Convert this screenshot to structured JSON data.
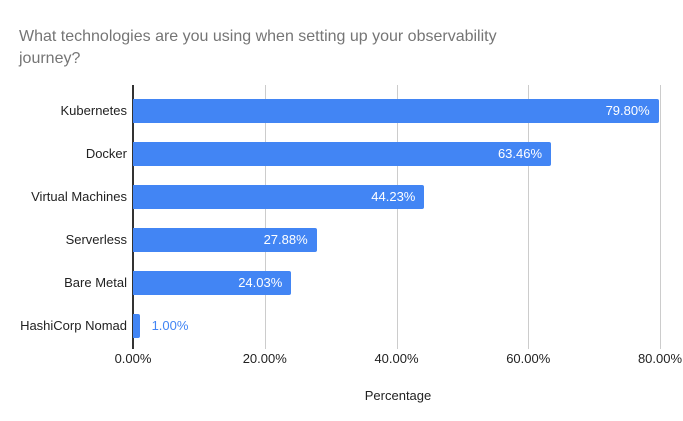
{
  "title_lines": [
    "What technologies are you using when setting up your observability",
    "journey?"
  ],
  "chart_data": {
    "type": "bar",
    "orientation": "horizontal",
    "title": "What technologies are you using when setting up your observability journey?",
    "categories": [
      "Kubernetes",
      "Docker",
      "Virtual Machines",
      "Serverless",
      "Bare Metal",
      "HashiCorp Nomad"
    ],
    "values": [
      79.8,
      63.46,
      44.23,
      27.88,
      24.03,
      1.0
    ],
    "value_labels": [
      "79.80%",
      "63.46%",
      "44.23%",
      "27.88%",
      "24.03%",
      "1.00%"
    ],
    "xlabel": "Percentage",
    "x_ticks": [
      "0.00%",
      "20.00%",
      "40.00%",
      "60.00%",
      "80.00%"
    ],
    "x_tick_values": [
      0,
      20,
      40,
      60,
      80
    ],
    "xlim": [
      0,
      80
    ],
    "grid": true,
    "legend": "none",
    "colors": {
      "bar": "#4285f4",
      "value_label_inside": "#ffffff",
      "value_label_outside": "#4285f4",
      "title_text": "#757575",
      "axis_text": "#222222",
      "gridline": "#cccccc",
      "axis_line": "#333333",
      "background": "#ffffff"
    }
  }
}
